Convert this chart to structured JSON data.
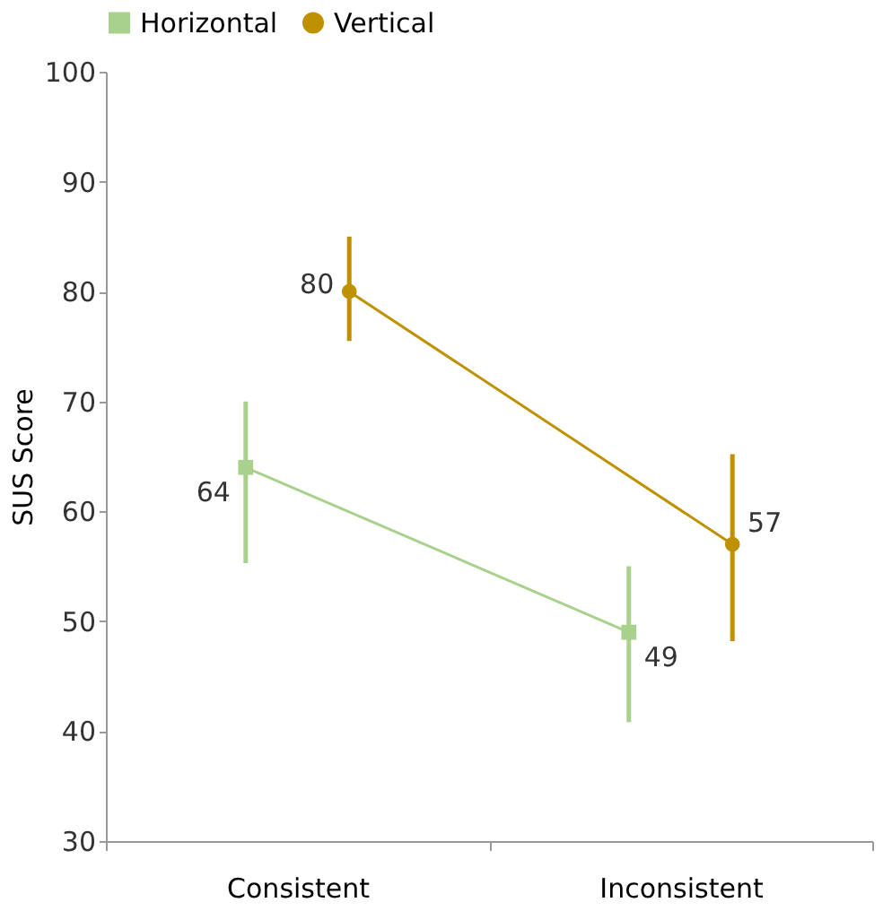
{
  "chart_data": {
    "type": "line",
    "ylabel": "SUS Score",
    "categories": [
      "Consistent",
      "Inconsistent"
    ],
    "series": [
      {
        "name": "Horizontal",
        "color": "#a9d18e",
        "marker": "square",
        "values": [
          64,
          49
        ],
        "errors": [
          [
            55.3,
            70
          ],
          [
            40.8,
            55
          ]
        ]
      },
      {
        "name": "Vertical",
        "color": "#bf9000",
        "marker": "circle",
        "values": [
          80,
          57
        ],
        "errors": [
          [
            75.5,
            85
          ],
          [
            48.2,
            65.2
          ]
        ]
      }
    ],
    "ylim": [
      30,
      100
    ],
    "yticks": [
      30,
      40,
      50,
      60,
      70,
      80,
      90,
      100
    ],
    "data_labels": true,
    "grid": false,
    "legend": "top"
  }
}
